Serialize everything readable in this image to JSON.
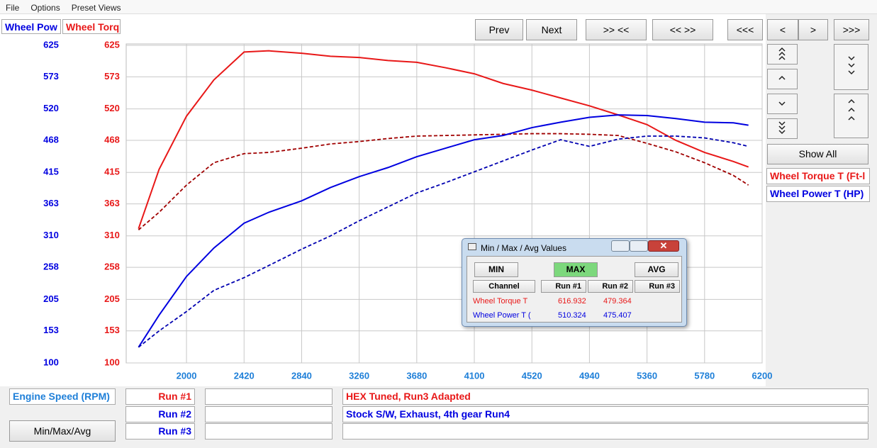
{
  "menu": [
    "File",
    "Options",
    "Preset Views"
  ],
  "buttons": [
    "Prev",
    "Next",
    ">> <<",
    "<< >>",
    "<<<",
    "<",
    ">",
    ">>>"
  ],
  "side": {
    "show_all": "Show All",
    "channels": [
      "Wheel Torque T (Ft-l",
      "Wheel Power T (HP)"
    ]
  },
  "chart_data": {
    "type": "line",
    "y_label": "Wheel Pow",
    "y2_label": "Wheel Torq",
    "x_label": "Engine Speed (RPM)",
    "x": [
      1650,
      1800,
      2000,
      2200,
      2420,
      2600,
      2840,
      3050,
      3260,
      3470,
      3680,
      3890,
      4100,
      4310,
      4520,
      4730,
      4940,
      5150,
      5360,
      5570,
      5780,
      5990,
      6100
    ],
    "series": [
      {
        "color": "#e81818",
        "dash": false,
        "axis": "y2",
        "values": [
          322,
          420,
          508,
          568,
          614,
          616,
          612,
          607,
          605,
          600,
          597,
          588,
          578,
          562,
          551,
          538,
          525,
          510,
          494,
          468,
          448,
          433,
          424
        ]
      },
      {
        "color": "#a00000",
        "dash": true,
        "axis": "y2",
        "values": [
          320,
          349,
          394,
          431,
          446,
          448,
          455,
          462,
          466,
          471,
          475,
          476,
          477,
          478,
          479,
          479,
          478,
          476,
          463,
          449,
          431,
          410,
          394
        ]
      },
      {
        "color": "#0000e0",
        "dash": false,
        "values": [
          126,
          179,
          243,
          290,
          331,
          349,
          368,
          390,
          408,
          423,
          441,
          455,
          469,
          476,
          489,
          498,
          506,
          510,
          509,
          504,
          498,
          497,
          493
        ]
      },
      {
        "color": "#0000b0",
        "dash": true,
        "values": [
          126,
          153,
          185,
          220,
          241,
          261,
          288,
          310,
          335,
          358,
          381,
          398,
          416,
          434,
          452,
          469,
          458,
          470,
          475,
          475,
          472,
          464,
          458
        ]
      }
    ],
    "xlim": [
      1560,
      6200
    ],
    "xticks": [
      2000,
      2420,
      2840,
      3260,
      3680,
      4100,
      4520,
      4940,
      5360,
      5780,
      6200
    ],
    "ylim": [
      100,
      625
    ],
    "yticks": [
      100,
      153,
      205,
      258,
      310,
      363,
      415,
      468,
      520,
      573,
      625
    ],
    "y2lim": [
      100,
      625
    ],
    "y2ticks": [
      100,
      153,
      205,
      258,
      310,
      363,
      415,
      468,
      520,
      573,
      625
    ],
    "grid": true
  },
  "runs": {
    "labels": [
      "Run #1",
      "Run #2",
      "Run #3"
    ],
    "descriptions": [
      "HEX Tuned, Run3 Adapted",
      "Stock S/W, Exhaust, 4th gear Run4"
    ]
  },
  "minmax_button": "Min/Max/Avg",
  "dialog": {
    "title": "Min / Max / Avg Values",
    "buttons": [
      "MIN",
      "MAX",
      "AVG"
    ],
    "headers": [
      "Channel",
      "Run #1",
      "Run #2",
      "Run #3"
    ],
    "rows": [
      [
        "Wheel Torque T",
        616.932,
        479.364
      ],
      [
        "Wheel Power T (",
        510.324,
        475.407
      ]
    ]
  }
}
